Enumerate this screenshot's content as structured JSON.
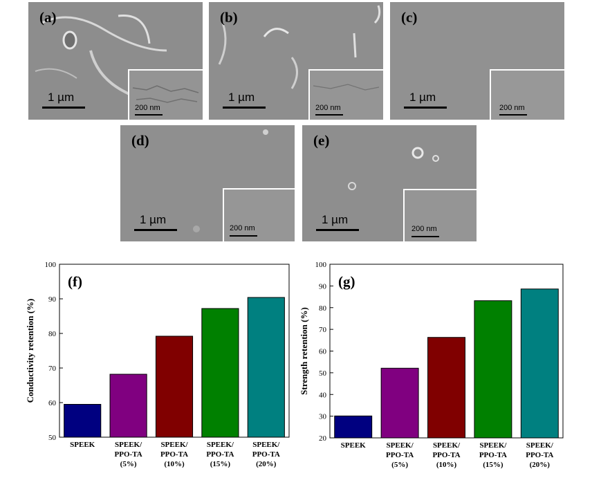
{
  "sem": {
    "a": {
      "label": "(a)",
      "scale": "1 µm",
      "inset_scale": "200 nm"
    },
    "b": {
      "label": "(b)",
      "scale": "1 µm",
      "inset_scale": "200 nm"
    },
    "c": {
      "label": "(c)",
      "scale": "1 µm",
      "inset_scale": "200 nm"
    },
    "d": {
      "label": "(d)",
      "scale": "1 µm",
      "inset_scale": "200 nm"
    },
    "e": {
      "label": "(e)",
      "scale": "1 µm",
      "inset_scale": "200 nm"
    }
  },
  "chart_data": [
    {
      "type": "bar",
      "panel_label": "(f)",
      "ylabel": "Conductivity retention (%)",
      "ylim": [
        50,
        100
      ],
      "yticks": [
        50,
        60,
        70,
        80,
        90,
        100
      ],
      "categories": [
        [
          "SPEEK"
        ],
        [
          "SPEEK/",
          "PPO-TA",
          "(5%)"
        ],
        [
          "SPEEK/",
          "PPO-TA",
          "(10%)"
        ],
        [
          "SPEEK/",
          "PPO-TA",
          "(15%)"
        ],
        [
          "SPEEK/",
          "PPO-TA",
          "(20%)"
        ]
      ],
      "values": [
        59.5,
        68.2,
        79.2,
        87.2,
        90.4
      ],
      "colors": [
        "#000080",
        "#800080",
        "#800000",
        "#008000",
        "#008080"
      ]
    },
    {
      "type": "bar",
      "panel_label": "(g)",
      "ylabel": "Strength retention (%)",
      "ylim": [
        20,
        100
      ],
      "yticks": [
        20,
        30,
        40,
        50,
        60,
        70,
        80,
        90,
        100
      ],
      "categories": [
        [
          "SPEEK"
        ],
        [
          "SPEEK/",
          "PPO-TA",
          "(5%)"
        ],
        [
          "SPEEK/",
          "PPO-TA",
          "(10%)"
        ],
        [
          "SPEEK/",
          "PPO-TA",
          "(15%)"
        ],
        [
          "SPEEK/",
          "PPO-TA",
          "(20%)"
        ]
      ],
      "values": [
        30.1,
        52.1,
        66.3,
        83.2,
        88.6
      ],
      "colors": [
        "#000080",
        "#800080",
        "#800000",
        "#008000",
        "#008080"
      ]
    }
  ]
}
